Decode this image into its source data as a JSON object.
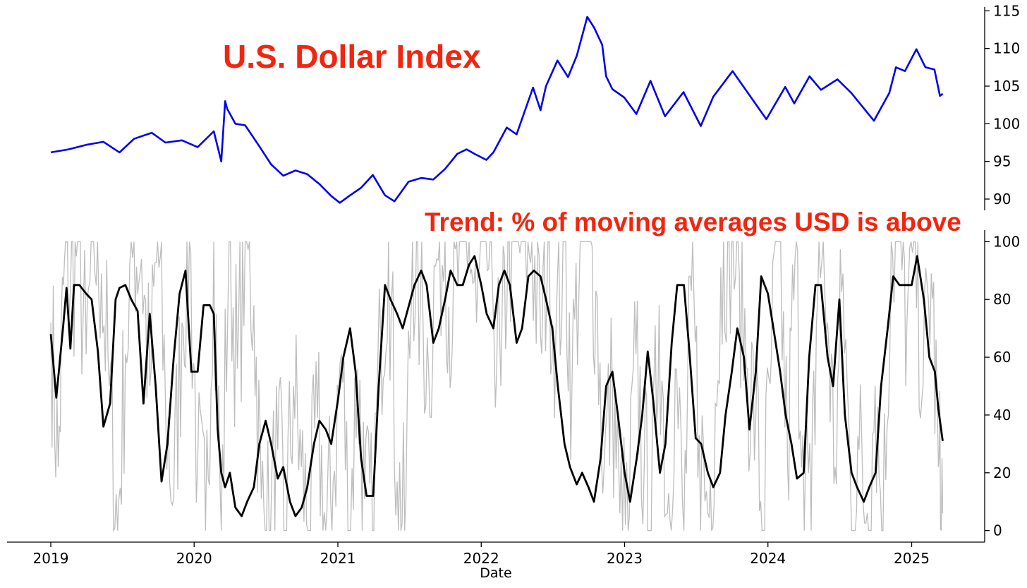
{
  "colors": {
    "dollar_line": "#0000ee",
    "trend_line": "#000000",
    "trend_raw": "#bdbdbd",
    "title_red": "#f2250f"
  },
  "chart_data": [
    {
      "type": "line",
      "title": "U.S. Dollar Index",
      "xlabel": "",
      "ylabel": "",
      "ylim": [
        88.5,
        115.5
      ],
      "yticks": [
        90,
        95,
        100,
        105,
        110,
        115
      ],
      "grid": false,
      "series": [
        {
          "x": [
            "2019-01-01",
            "2019-02-15",
            "2019-04-01",
            "2019-05-15",
            "2019-06-25",
            "2019-08-01",
            "2019-09-15",
            "2019-10-20",
            "2019-12-01",
            "2020-01-10",
            "2020-02-20",
            "2020-03-10",
            "2020-03-20",
            "2020-03-25",
            "2020-04-15",
            "2020-05-10",
            "2020-06-15",
            "2020-07-15",
            "2020-08-15",
            "2020-09-15",
            "2020-10-15",
            "2020-11-15",
            "2020-12-15",
            "2021-01-06",
            "2021-02-01",
            "2021-03-01",
            "2021-03-31",
            "2021-05-01",
            "2021-05-25",
            "2021-06-30",
            "2021-08-01",
            "2021-09-01",
            "2021-10-01",
            "2021-11-01",
            "2021-11-25",
            "2021-12-15",
            "2022-01-14",
            "2022-02-01",
            "2022-03-07",
            "2022-04-01",
            "2022-05-13",
            "2022-06-01",
            "2022-06-15",
            "2022-07-14",
            "2022-08-10",
            "2022-09-01",
            "2022-09-28",
            "2022-10-15",
            "2022-11-05",
            "2022-11-15",
            "2022-12-01",
            "2022-12-31",
            "2023-01-31",
            "2023-03-08",
            "2023-04-14",
            "2023-05-31",
            "2023-07-14",
            "2023-08-15",
            "2023-10-03",
            "2023-11-15",
            "2023-12-28",
            "2024-02-14",
            "2024-03-08",
            "2024-04-16",
            "2024-05-15",
            "2024-06-26",
            "2024-07-31",
            "2024-09-27",
            "2024-11-05",
            "2024-11-22",
            "2024-12-15",
            "2025-01-13",
            "2025-02-05",
            "2025-02-28",
            "2025-03-14",
            "2025-03-21"
          ],
          "y": [
            96.2,
            96.6,
            97.2,
            97.6,
            96.2,
            98.0,
            98.8,
            97.5,
            97.8,
            96.9,
            99.0,
            95.0,
            103.0,
            102.0,
            100.0,
            99.8,
            97.0,
            94.6,
            93.1,
            93.8,
            93.3,
            92.0,
            90.4,
            89.5,
            90.5,
            91.5,
            93.2,
            90.5,
            89.7,
            92.3,
            92.8,
            92.6,
            94.0,
            96.0,
            96.6,
            96.0,
            95.2,
            96.2,
            99.5,
            98.6,
            104.8,
            101.8,
            105.0,
            108.4,
            106.2,
            109.0,
            114.2,
            112.8,
            110.5,
            106.3,
            104.6,
            103.5,
            101.3,
            105.7,
            101.0,
            104.2,
            99.7,
            103.6,
            107.0,
            103.8,
            100.6,
            104.9,
            102.7,
            106.3,
            104.5,
            105.9,
            104.1,
            100.4,
            104.1,
            107.5,
            107.0,
            109.9,
            107.5,
            107.2,
            103.7,
            104.0
          ]
        }
      ]
    },
    {
      "type": "line",
      "title": "Trend: % of moving averages USD is above",
      "xlabel": "Date",
      "ylabel": "",
      "ylim": [
        -4,
        104
      ],
      "yticks": [
        0,
        20,
        40,
        60,
        80,
        100
      ],
      "x_tick_labels": [
        "2019",
        "2020",
        "2021",
        "2022",
        "2023",
        "2024",
        "2025"
      ],
      "grid": false,
      "series": [
        {
          "x": [
            "2019-01-01",
            "2019-01-15",
            "2019-02-01",
            "2019-02-10",
            "2019-02-20",
            "2019-03-01",
            "2019-03-15",
            "2019-04-01",
            "2019-04-15",
            "2019-05-01",
            "2019-05-15",
            "2019-06-01",
            "2019-06-15",
            "2019-06-25",
            "2019-07-10",
            "2019-07-25",
            "2019-08-10",
            "2019-08-25",
            "2019-09-10",
            "2019-09-25",
            "2019-10-10",
            "2019-10-25",
            "2019-11-10",
            "2019-11-25",
            "2019-12-10",
            "2019-12-25",
            "2020-01-10",
            "2020-01-25",
            "2020-02-10",
            "2020-02-20",
            "2020-03-01",
            "2020-03-10",
            "2020-03-20",
            "2020-04-01",
            "2020-04-15",
            "2020-05-01",
            "2020-05-15",
            "2020-06-01",
            "2020-06-15",
            "2020-07-01",
            "2020-07-15",
            "2020-08-01",
            "2020-08-15",
            "2020-09-01",
            "2020-09-15",
            "2020-10-01",
            "2020-10-15",
            "2020-11-01",
            "2020-11-15",
            "2020-12-01",
            "2020-12-15",
            "2021-01-01",
            "2021-01-15",
            "2021-02-01",
            "2021-02-15",
            "2021-03-01",
            "2021-03-15",
            "2021-04-01",
            "2021-04-15",
            "2021-05-01",
            "2021-05-15",
            "2021-06-01",
            "2021-06-15",
            "2021-07-01",
            "2021-07-15",
            "2021-08-01",
            "2021-08-15",
            "2021-09-01",
            "2021-09-15",
            "2021-10-01",
            "2021-10-15",
            "2021-11-01",
            "2021-11-15",
            "2021-12-01",
            "2021-12-15",
            "2022-01-01",
            "2022-01-15",
            "2022-02-01",
            "2022-02-15",
            "2022-03-01",
            "2022-03-15",
            "2022-04-01",
            "2022-04-15",
            "2022-05-01",
            "2022-05-15",
            "2022-06-01",
            "2022-06-15",
            "2022-07-01",
            "2022-07-15",
            "2022-08-01",
            "2022-08-15",
            "2022-09-01",
            "2022-09-15",
            "2022-10-01",
            "2022-10-15",
            "2022-11-01",
            "2022-11-15",
            "2022-12-01",
            "2022-12-15",
            "2023-01-01",
            "2023-01-15",
            "2023-02-01",
            "2023-02-15",
            "2023-03-01",
            "2023-03-15",
            "2023-04-01",
            "2023-04-15",
            "2023-05-01",
            "2023-05-15",
            "2023-06-01",
            "2023-06-15",
            "2023-07-01",
            "2023-07-15",
            "2023-08-01",
            "2023-08-15",
            "2023-09-01",
            "2023-09-15",
            "2023-10-01",
            "2023-10-15",
            "2023-11-01",
            "2023-11-15",
            "2023-12-01",
            "2023-12-15",
            "2024-01-01",
            "2024-01-15",
            "2024-02-01",
            "2024-02-15",
            "2024-03-01",
            "2024-03-15",
            "2024-04-01",
            "2024-04-15",
            "2024-05-01",
            "2024-05-15",
            "2024-06-01",
            "2024-06-15",
            "2024-07-01",
            "2024-07-15",
            "2024-08-01",
            "2024-08-15",
            "2024-09-01",
            "2024-09-15",
            "2024-10-01",
            "2024-10-15",
            "2024-11-01",
            "2024-11-15",
            "2024-12-01",
            "2024-12-15",
            "2025-01-01",
            "2025-01-15",
            "2025-02-01",
            "2025-02-15",
            "2025-03-01",
            "2025-03-10",
            "2025-03-21"
          ],
          "y": [
            68,
            46,
            70,
            84,
            63,
            85,
            85,
            82,
            80,
            62,
            36,
            44,
            80,
            84,
            85,
            80,
            76,
            44,
            75,
            50,
            17,
            30,
            60,
            82,
            90,
            55,
            55,
            78,
            78,
            75,
            35,
            20,
            15,
            20,
            8,
            5,
            10,
            15,
            30,
            38,
            30,
            18,
            22,
            10,
            5,
            8,
            15,
            30,
            38,
            35,
            30,
            45,
            60,
            70,
            55,
            25,
            12,
            12,
            50,
            85,
            80,
            75,
            70,
            78,
            85,
            90,
            85,
            65,
            70,
            80,
            90,
            85,
            85,
            92,
            95,
            85,
            75,
            70,
            85,
            90,
            85,
            65,
            70,
            88,
            90,
            88,
            80,
            70,
            50,
            30,
            22,
            16,
            20,
            15,
            10,
            25,
            50,
            55,
            40,
            20,
            10,
            25,
            40,
            62,
            45,
            20,
            30,
            65,
            85,
            85,
            62,
            32,
            30,
            20,
            15,
            20,
            40,
            55,
            70,
            60,
            35,
            55,
            88,
            82,
            70,
            55,
            40,
            30,
            18,
            20,
            60,
            85,
            85,
            60,
            50,
            80,
            40,
            20,
            15,
            10,
            15,
            20,
            50,
            70,
            88,
            85,
            85,
            85,
            95,
            80,
            60,
            55,
            42,
            31
          ]
        },
        {
          "x": [
            "2019-01-01",
            "2019-01-20",
            "2019-02-05",
            "2019-02-20",
            "2019-03-10",
            "2019-04-01",
            "2019-04-20",
            "2019-05-10",
            "2019-05-30",
            "2019-06-20",
            "2019-07-10",
            "2019-08-01",
            "2019-08-20",
            "2019-09-10",
            "2019-09-30",
            "2019-10-20",
            "2019-11-10",
            "2019-12-01",
            "2019-12-20",
            "2020-01-10",
            "2020-01-30",
            "2020-02-20",
            "2020-03-10",
            "2020-03-30",
            "2020-04-20",
            "2020-05-10",
            "2020-06-01",
            "2020-06-20",
            "2020-07-10",
            "2020-08-01",
            "2020-08-20",
            "2020-09-10",
            "2020-09-30",
            "2020-10-20",
            "2020-11-10",
            "2020-12-01",
            "2020-12-20",
            "2021-01-10",
            "2021-01-30",
            "2021-02-20",
            "2021-03-10",
            "2021-03-30",
            "2021-04-20",
            "2021-05-10",
            "2021-06-01",
            "2021-06-20",
            "2021-07-10",
            "2021-07-30",
            "2021-08-20",
            "2021-09-10",
            "2021-10-01",
            "2021-10-20",
            "2021-11-10",
            "2021-12-01",
            "2021-12-20",
            "2022-01-10",
            "2022-01-30",
            "2022-02-20",
            "2022-03-10",
            "2022-03-30",
            "2022-04-20",
            "2022-05-10",
            "2022-06-01",
            "2022-06-20",
            "2022-07-10",
            "2022-08-01",
            "2022-08-20",
            "2022-09-10",
            "2022-10-01",
            "2022-10-20",
            "2022-11-10",
            "2022-12-01",
            "2022-12-20",
            "2023-01-10",
            "2023-01-30",
            "2023-02-20",
            "2023-03-10",
            "2023-03-30",
            "2023-04-20",
            "2023-05-10",
            "2023-06-01",
            "2023-06-20",
            "2023-07-10",
            "2023-08-01",
            "2023-08-20",
            "2023-09-10",
            "2023-10-01",
            "2023-10-20",
            "2023-11-10",
            "2023-12-01",
            "2023-12-20",
            "2024-01-10",
            "2024-01-30",
            "2024-02-20",
            "2024-03-10",
            "2024-03-30",
            "2024-04-20",
            "2024-05-10",
            "2024-06-01",
            "2024-06-20",
            "2024-07-10",
            "2024-08-01",
            "2024-08-20",
            "2024-09-10",
            "2024-09-30",
            "2024-10-20",
            "2024-11-10",
            "2024-12-01",
            "2024-12-20",
            "2025-01-10",
            "2025-01-30",
            "2025-02-20",
            "2025-03-10",
            "2025-03-21"
          ],
          "y": [
            72,
            22,
            94,
            83,
            100,
            61,
            100,
            89,
            50,
            0,
            61,
            100,
            94,
            50,
            100,
            44,
            11,
            72,
            100,
            22,
            0,
            100,
            0,
            100,
            56,
            100,
            78,
            11,
            0,
            28,
            0,
            50,
            22,
            0,
            39,
            0,
            17,
            61,
            0,
            56,
            11,
            0,
            67,
            100,
            17,
            0,
            100,
            78,
            56,
            94,
            100,
            67,
            100,
            100,
            72,
            100,
            83,
            50,
            100,
            100,
            100,
            100,
            67,
            100,
            67,
            100,
            50,
            100,
            100,
            83,
            22,
            50,
            6,
            0,
            61,
            22,
            0,
            78,
            6,
            56,
            0,
            83,
            33,
            6,
            44,
            100,
            100,
            89,
            56,
            39,
            0,
            61,
            100,
            22,
            94,
            33,
            0,
            100,
            72,
            22,
            89,
            0,
            28,
            6,
            50,
            0,
            100,
            100,
            72,
            100,
            50,
            89,
            22,
            6
          ]
        }
      ]
    }
  ]
}
